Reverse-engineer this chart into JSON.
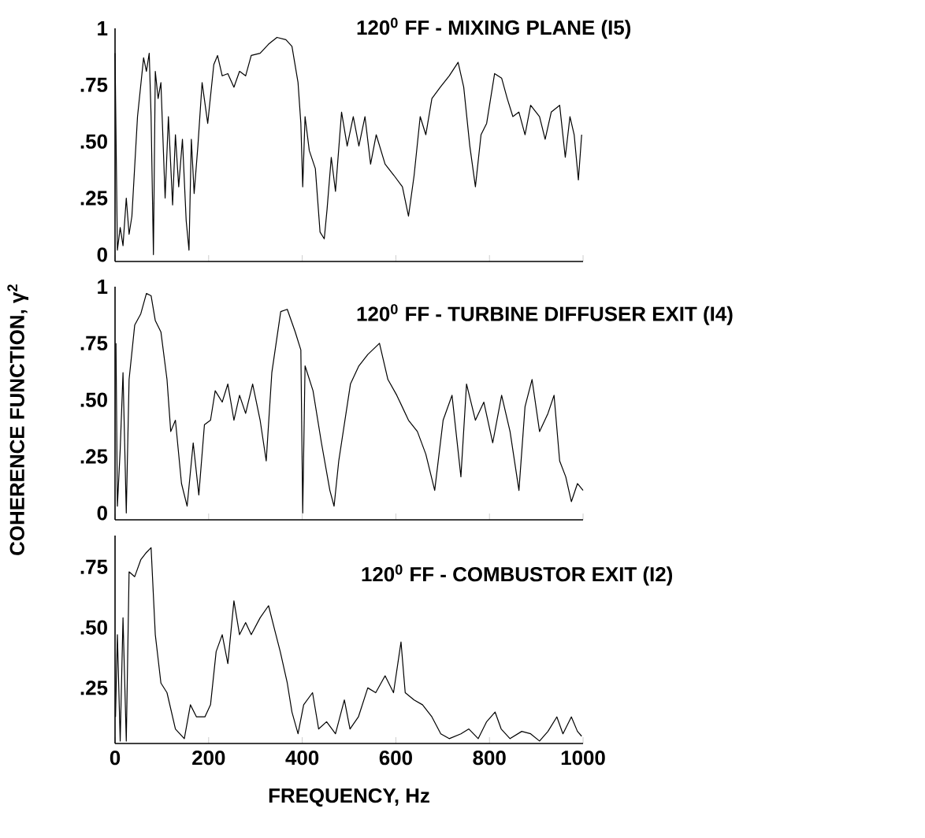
{
  "chart_data": [
    {
      "type": "line",
      "title": "120$^{0}$ FF - MIXING PLANE (I5)",
      "xlim": [
        0,
        1000
      ],
      "ylim": [
        -0.03,
        1
      ],
      "xticks": [
        {
          "value": 0,
          "label": null
        },
        {
          "value": 200,
          "label": null
        },
        {
          "value": 400,
          "label": null
        },
        {
          "value": 600,
          "label": null
        },
        {
          "value": 800,
          "label": null
        },
        {
          "value": 1000,
          "label": null
        }
      ],
      "yticks": [
        {
          "value": 0,
          "label": "0"
        },
        {
          "value": 0.25,
          "label": ".25"
        },
        {
          "value": 0.5,
          "label": ".50"
        },
        {
          "value": 0.75,
          "label": ".75"
        },
        {
          "value": 1,
          "label": "1"
        }
      ],
      "tick_labels": "y",
      "series": [
        {
          "color": "#000000",
          "x": [
            0,
            5,
            11,
            17,
            24,
            30,
            36,
            48,
            61,
            67,
            73,
            77,
            82,
            86,
            92,
            98,
            107,
            114,
            123,
            129,
            136,
            144,
            152,
            158,
            163,
            169,
            177,
            186,
            198,
            211,
            219,
            229,
            241,
            254,
            266,
            279,
            291,
            310,
            328,
            346,
            365,
            378,
            391,
            397,
            401,
            406,
            415,
            428,
            438,
            447,
            453,
            462,
            471,
            484,
            496,
            509,
            521,
            534,
            546,
            558,
            577,
            596,
            614,
            627,
            639,
            652,
            664,
            677,
            695,
            714,
            733,
            745,
            758,
            770,
            782,
            794,
            811,
            826,
            838,
            850,
            863,
            876,
            888,
            907,
            919,
            932,
            950,
            962,
            972,
            981,
            990,
            997
          ],
          "values": [
            0.89,
            0.02,
            0.12,
            0.04,
            0.25,
            0.09,
            0.17,
            0.61,
            0.87,
            0.81,
            0.89,
            0.61,
            0,
            0.81,
            0.69,
            0.76,
            0.25,
            0.61,
            0.22,
            0.53,
            0.3,
            0.51,
            0.15,
            0.02,
            0.51,
            0.27,
            0.48,
            0.76,
            0.58,
            0.84,
            0.88,
            0.79,
            0.8,
            0.74,
            0.81,
            0.79,
            0.88,
            0.89,
            0.93,
            0.96,
            0.95,
            0.92,
            0.76,
            0.58,
            0.3,
            0.61,
            0.46,
            0.38,
            0.1,
            0.07,
            0.2,
            0.43,
            0.28,
            0.63,
            0.48,
            0.61,
            0.48,
            0.61,
            0.4,
            0.53,
            0.4,
            0.35,
            0.3,
            0.17,
            0.35,
            0.61,
            0.53,
            0.69,
            0.74,
            0.79,
            0.85,
            0.74,
            0.48,
            0.3,
            0.53,
            0.58,
            0.8,
            0.78,
            0.69,
            0.61,
            0.63,
            0.53,
            0.66,
            0.61,
            0.51,
            0.63,
            0.66,
            0.43,
            0.61,
            0.53,
            0.33,
            0.53
          ]
        }
      ]
    },
    {
      "type": "line",
      "title": "120$^{0}$ FF - TURBINE DIFFUSER EXIT (I4)",
      "ylabel": "COHERENCE FUNCTION, γ$^{2}$",
      "xlim": [
        0,
        1000
      ],
      "ylim": [
        -0.03,
        1
      ],
      "xticks": [
        {
          "value": 0,
          "label": null
        },
        {
          "value": 200,
          "label": null
        },
        {
          "value": 400,
          "label": null
        },
        {
          "value": 600,
          "label": null
        },
        {
          "value": 800,
          "label": null
        },
        {
          "value": 1000,
          "label": null
        }
      ],
      "yticks": [
        {
          "value": 0,
          "label": "0"
        },
        {
          "value": 0.25,
          "label": ".25"
        },
        {
          "value": 0.5,
          "label": ".50"
        },
        {
          "value": 0.75,
          "label": ".75"
        },
        {
          "value": 1,
          "label": "1"
        }
      ],
      "tick_labels": "y",
      "series": [
        {
          "color": "#000000",
          "x": [
            2,
            5,
            11,
            17,
            24,
            30,
            42,
            55,
            67,
            77,
            86,
            98,
            111,
            119,
            129,
            142,
            154,
            167,
            179,
            191,
            204,
            214,
            229,
            241,
            254,
            266,
            279,
            294,
            310,
            323,
            335,
            354,
            368,
            385,
            397,
            401,
            406,
            423,
            441,
            459,
            468,
            478,
            503,
            521,
            540,
            565,
            583,
            602,
            627,
            646,
            664,
            683,
            701,
            720,
            739,
            751,
            770,
            788,
            807,
            826,
            844,
            863,
            876,
            891,
            907,
            925,
            938,
            950,
            963,
            975,
            988,
            1000
          ],
          "values": [
            0.75,
            0.03,
            0.28,
            0.62,
            0,
            0.59,
            0.83,
            0.88,
            0.97,
            0.96,
            0.85,
            0.8,
            0.59,
            0.36,
            0.41,
            0.13,
            0.03,
            0.31,
            0.08,
            0.39,
            0.41,
            0.54,
            0.49,
            0.57,
            0.41,
            0.52,
            0.44,
            0.57,
            0.41,
            0.23,
            0.62,
            0.89,
            0.9,
            0.8,
            0.72,
            0,
            0.65,
            0.54,
            0.31,
            0.1,
            0.03,
            0.23,
            0.57,
            0.65,
            0.7,
            0.75,
            0.59,
            0.52,
            0.41,
            0.36,
            0.26,
            0.1,
            0.41,
            0.52,
            0.16,
            0.57,
            0.41,
            0.49,
            0.31,
            0.52,
            0.36,
            0.1,
            0.47,
            0.59,
            0.36,
            0.44,
            0.52,
            0.23,
            0.16,
            0.05,
            0.13,
            0.1
          ]
        }
      ]
    },
    {
      "type": "line",
      "title": "120$^{0}$ FF - COMBUSTOR EXIT (I2)",
      "xlabel": "FREQUENCY, Hz",
      "xlim": [
        0,
        1000
      ],
      "ylim": [
        0.02,
        0.88
      ],
      "xticks": [
        0,
        200,
        400,
        600,
        800,
        1000
      ],
      "yticks": [
        {
          "value": 0.25,
          "label": ".25"
        },
        {
          "value": 0.5,
          "label": ".50"
        },
        {
          "value": 0.75,
          "label": ".75"
        }
      ],
      "series": [
        {
          "color": "#000000",
          "x": [
            1,
            5,
            11,
            17,
            24,
            30,
            42,
            55,
            67,
            77,
            86,
            92,
            98,
            111,
            129,
            148,
            161,
            174,
            192,
            204,
            216,
            229,
            241,
            254,
            266,
            279,
            291,
            310,
            328,
            341,
            353,
            368,
            378,
            391,
            403,
            422,
            435,
            452,
            471,
            490,
            502,
            520,
            540,
            557,
            577,
            595,
            611,
            620,
            639,
            657,
            677,
            696,
            714,
            739,
            756,
            776,
            794,
            812,
            825,
            844,
            869,
            888,
            907,
            925,
            944,
            957,
            975,
            988,
            997
          ],
          "values": [
            0.13,
            0.47,
            0.03,
            0.54,
            0.03,
            0.73,
            0.71,
            0.78,
            0.81,
            0.83,
            0.47,
            0.37,
            0.27,
            0.23,
            0.08,
            0.04,
            0.18,
            0.13,
            0.13,
            0.18,
            0.4,
            0.47,
            0.35,
            0.61,
            0.47,
            0.52,
            0.47,
            0.54,
            0.59,
            0.49,
            0.4,
            0.27,
            0.15,
            0.06,
            0.18,
            0.23,
            0.08,
            0.11,
            0.06,
            0.2,
            0.08,
            0.13,
            0.25,
            0.23,
            0.3,
            0.23,
            0.44,
            0.23,
            0.2,
            0.18,
            0.13,
            0.06,
            0.04,
            0.06,
            0.08,
            0.04,
            0.11,
            0.15,
            0.08,
            0.04,
            0.07,
            0.06,
            0.03,
            0.07,
            0.13,
            0.06,
            0.13,
            0.07,
            0.05
          ]
        }
      ]
    }
  ]
}
